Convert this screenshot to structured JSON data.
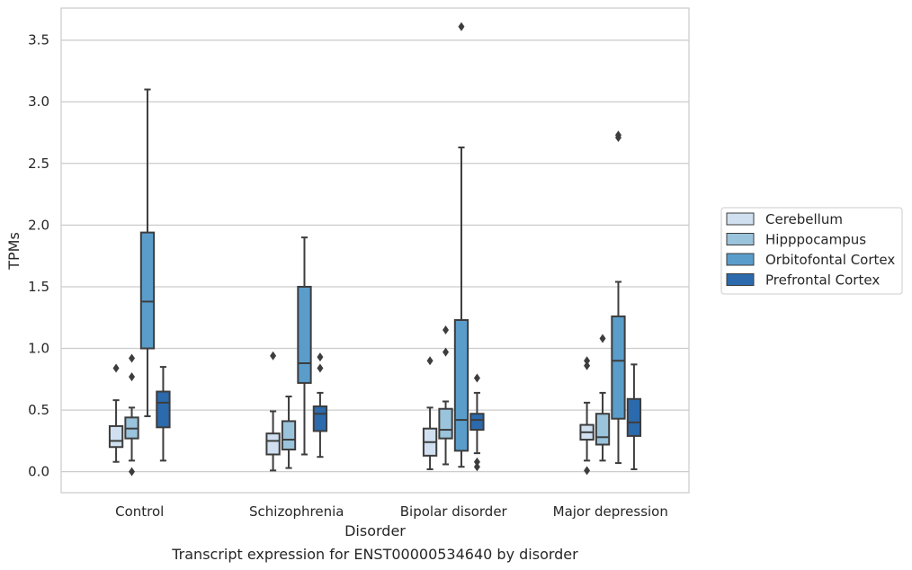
{
  "caption": "Transcript expression for ENST00000534640 by disorder",
  "chart_data": {
    "type": "boxplot",
    "title": "",
    "xlabel": "Disorder",
    "ylabel": "TPMs",
    "ylim": [
      -0.17,
      3.76
    ],
    "yticks": [
      0.0,
      0.5,
      1.0,
      1.5,
      2.0,
      2.5,
      3.0,
      3.5
    ],
    "ytick_labels": [
      "0.0",
      "0.5",
      "1.0",
      "1.5",
      "2.0",
      "2.5",
      "3.0",
      "3.5"
    ],
    "grid": "horizontal",
    "legend_position": "right",
    "categories": [
      "Control",
      "Schizophrenia",
      "Bipolar disorder",
      "Major depression"
    ],
    "series": [
      {
        "name": "Cerebellum",
        "color": "#d0e0f0",
        "boxes": [
          {
            "whislo": 0.08,
            "q1": 0.2,
            "med": 0.25,
            "q3": 0.37,
            "whishi": 0.58,
            "fliers": [
              0.84
            ]
          },
          {
            "whislo": 0.01,
            "q1": 0.14,
            "med": 0.25,
            "q3": 0.31,
            "whishi": 0.49,
            "fliers": [
              0.94
            ]
          },
          {
            "whislo": 0.02,
            "q1": 0.13,
            "med": 0.24,
            "q3": 0.35,
            "whishi": 0.52,
            "fliers": [
              0.9
            ]
          },
          {
            "whislo": 0.09,
            "q1": 0.26,
            "med": 0.32,
            "q3": 0.38,
            "whishi": 0.56,
            "fliers": [
              0.01,
              0.86,
              0.9
            ]
          }
        ]
      },
      {
        "name": "Hipppocampus",
        "color": "#9ac3dc",
        "boxes": [
          {
            "whislo": 0.09,
            "q1": 0.27,
            "med": 0.35,
            "q3": 0.44,
            "whishi": 0.52,
            "fliers": [
              0.0,
              0.77,
              0.92
            ]
          },
          {
            "whislo": 0.03,
            "q1": 0.18,
            "med": 0.26,
            "q3": 0.41,
            "whishi": 0.61,
            "fliers": []
          },
          {
            "whislo": 0.06,
            "q1": 0.27,
            "med": 0.34,
            "q3": 0.51,
            "whishi": 0.57,
            "fliers": [
              0.97,
              1.15
            ]
          },
          {
            "whislo": 0.09,
            "q1": 0.22,
            "med": 0.28,
            "q3": 0.47,
            "whishi": 0.64,
            "fliers": [
              1.08
            ]
          }
        ]
      },
      {
        "name": "Orbitofontal Cortex",
        "color": "#5a9dcb",
        "boxes": [
          {
            "whislo": 0.45,
            "q1": 1.0,
            "med": 1.38,
            "q3": 1.94,
            "whishi": 3.1,
            "fliers": []
          },
          {
            "whislo": 0.14,
            "q1": 0.72,
            "med": 0.88,
            "q3": 1.5,
            "whishi": 1.9,
            "fliers": []
          },
          {
            "whislo": 0.04,
            "q1": 0.17,
            "med": 0.42,
            "q3": 1.23,
            "whishi": 2.63,
            "fliers": [
              3.61
            ]
          },
          {
            "whislo": 0.07,
            "q1": 0.43,
            "med": 0.9,
            "q3": 1.26,
            "whishi": 1.54,
            "fliers": [
              2.71,
              2.73
            ]
          }
        ]
      },
      {
        "name": "Prefrontal Cortex",
        "color": "#2b6aac",
        "boxes": [
          {
            "whislo": 0.09,
            "q1": 0.36,
            "med": 0.56,
            "q3": 0.65,
            "whishi": 0.85,
            "fliers": []
          },
          {
            "whislo": 0.12,
            "q1": 0.33,
            "med": 0.47,
            "q3": 0.53,
            "whishi": 0.64,
            "fliers": [
              0.84,
              0.93
            ]
          },
          {
            "whislo": 0.15,
            "q1": 0.34,
            "med": 0.42,
            "q3": 0.47,
            "whishi": 0.64,
            "fliers": [
              0.04,
              0.08,
              0.76
            ]
          },
          {
            "whislo": 0.02,
            "q1": 0.29,
            "med": 0.4,
            "q3": 0.59,
            "whishi": 0.87,
            "fliers": []
          }
        ]
      }
    ]
  }
}
